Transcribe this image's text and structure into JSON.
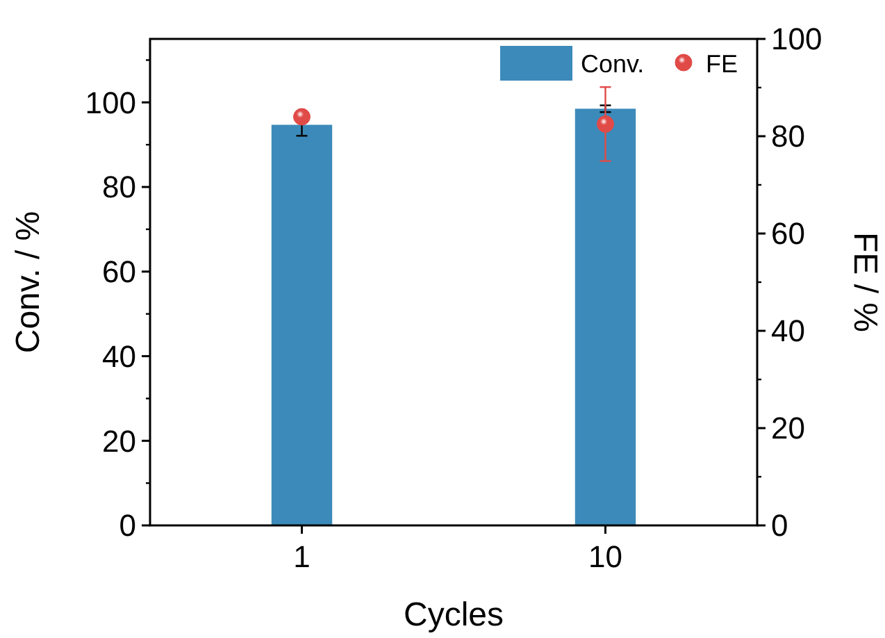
{
  "chart_data": {
    "type": "bar",
    "xlabel": "Cycles",
    "ylabel": "Conv. / %",
    "y2label": "FE / %",
    "categories": [
      "1",
      "10"
    ],
    "series": [
      {
        "name": "Conv.",
        "color": "#3c8aba",
        "values": [
          94.7,
          98.5
        ],
        "errors": [
          2.6,
          0.8
        ]
      },
      {
        "name": "FE",
        "type": "scatter",
        "axis": "y2",
        "color": "#e04a47",
        "values": [
          84.0,
          82.5
        ],
        "errors": [
          null,
          7.6
        ],
        "marker": "circle"
      }
    ],
    "ylim": [
      0,
      115
    ],
    "yticks": [
      0,
      20,
      40,
      60,
      80,
      100
    ],
    "y2lim": [
      0,
      100
    ],
    "y2ticks": [
      0,
      20,
      40,
      60,
      80,
      100
    ],
    "legend": "top right",
    "grid": false
  }
}
